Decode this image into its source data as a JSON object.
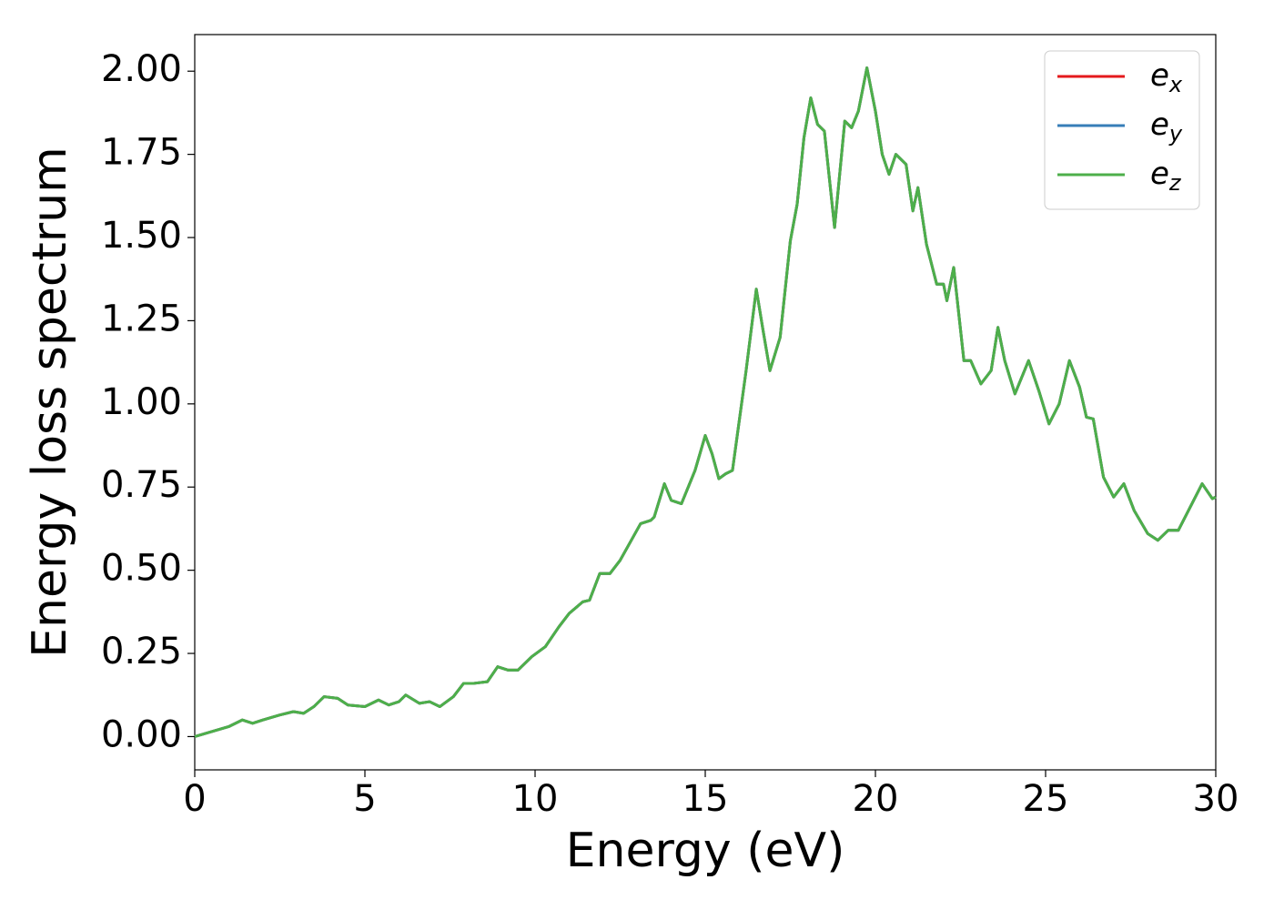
{
  "chart_data": {
    "type": "line",
    "xlabel": "Energy (eV)",
    "ylabel": "Energy loss spectrum",
    "x": [
      0,
      0.5,
      1.0,
      1.4,
      1.7,
      2.0,
      2.5,
      2.9,
      3.2,
      3.5,
      3.8,
      4.2,
      4.5,
      5.0,
      5.4,
      5.7,
      6.0,
      6.2,
      6.6,
      6.9,
      7.2,
      7.6,
      7.9,
      8.2,
      8.6,
      8.9,
      9.2,
      9.5,
      9.9,
      10.3,
      10.7,
      11.0,
      11.4,
      11.6,
      11.9,
      12.2,
      12.5,
      12.8,
      13.1,
      13.4,
      13.5,
      13.8,
      14.0,
      14.3,
      14.7,
      15.0,
      15.2,
      15.4,
      15.6,
      15.8,
      16.2,
      16.5,
      16.7,
      16.9,
      17.2,
      17.5,
      17.7,
      17.9,
      18.1,
      18.3,
      18.5,
      18.8,
      19.1,
      19.3,
      19.5,
      19.75,
      20.0,
      20.2,
      20.4,
      20.6,
      20.9,
      21.1,
      21.25,
      21.5,
      21.8,
      22.0,
      22.1,
      22.3,
      22.6,
      22.8,
      23.1,
      23.4,
      23.6,
      23.8,
      24.1,
      24.5,
      24.8,
      25.1,
      25.4,
      25.7,
      26.0,
      26.2,
      26.4,
      26.7,
      27.0,
      27.3,
      27.6,
      28.0,
      28.3,
      28.6,
      28.9,
      29.3,
      29.6,
      29.9,
      30.0
    ],
    "series": [
      {
        "name": "ex",
        "color": "#e41a1c",
        "values": [
          0,
          0.015,
          0.03,
          0.05,
          0.04,
          0.05,
          0.065,
          0.075,
          0.07,
          0.09,
          0.12,
          0.115,
          0.095,
          0.09,
          0.11,
          0.095,
          0.105,
          0.125,
          0.1,
          0.105,
          0.09,
          0.12,
          0.16,
          0.16,
          0.165,
          0.21,
          0.2,
          0.2,
          0.24,
          0.27,
          0.33,
          0.37,
          0.405,
          0.41,
          0.49,
          0.49,
          0.53,
          0.585,
          0.64,
          0.65,
          0.66,
          0.76,
          0.71,
          0.7,
          0.8,
          0.905,
          0.85,
          0.775,
          0.79,
          0.8,
          1.1,
          1.345,
          1.22,
          1.1,
          1.2,
          1.49,
          1.6,
          1.8,
          1.92,
          1.84,
          1.82,
          1.53,
          1.85,
          1.83,
          1.88,
          2.01,
          1.88,
          1.75,
          1.69,
          1.75,
          1.72,
          1.58,
          1.65,
          1.48,
          1.36,
          1.36,
          1.31,
          1.41,
          1.13,
          1.13,
          1.06,
          1.1,
          1.23,
          1.13,
          1.03,
          1.13,
          1.04,
          0.94,
          1.0,
          1.13,
          1.05,
          0.96,
          0.955,
          0.78,
          0.72,
          0.76,
          0.68,
          0.61,
          0.59,
          0.62,
          0.62,
          0.7,
          0.76,
          0.715,
          0.72
        ]
      },
      {
        "name": "ey",
        "color": "#377eb8",
        "values": [
          0,
          0.015,
          0.03,
          0.05,
          0.04,
          0.05,
          0.065,
          0.075,
          0.07,
          0.09,
          0.12,
          0.115,
          0.095,
          0.09,
          0.11,
          0.095,
          0.105,
          0.125,
          0.1,
          0.105,
          0.09,
          0.12,
          0.16,
          0.16,
          0.165,
          0.21,
          0.2,
          0.2,
          0.24,
          0.27,
          0.33,
          0.37,
          0.405,
          0.41,
          0.49,
          0.49,
          0.53,
          0.585,
          0.64,
          0.65,
          0.66,
          0.76,
          0.71,
          0.7,
          0.8,
          0.905,
          0.85,
          0.775,
          0.79,
          0.8,
          1.1,
          1.345,
          1.22,
          1.1,
          1.2,
          1.49,
          1.6,
          1.8,
          1.92,
          1.84,
          1.82,
          1.53,
          1.85,
          1.83,
          1.88,
          2.01,
          1.88,
          1.75,
          1.69,
          1.75,
          1.72,
          1.58,
          1.65,
          1.48,
          1.36,
          1.36,
          1.31,
          1.41,
          1.13,
          1.13,
          1.06,
          1.1,
          1.23,
          1.13,
          1.03,
          1.13,
          1.04,
          0.94,
          1.0,
          1.13,
          1.05,
          0.96,
          0.955,
          0.78,
          0.72,
          0.76,
          0.68,
          0.61,
          0.59,
          0.62,
          0.62,
          0.7,
          0.76,
          0.715,
          0.72
        ]
      },
      {
        "name": "ez",
        "color": "#4daf4a",
        "values": [
          0,
          0.015,
          0.03,
          0.05,
          0.04,
          0.05,
          0.065,
          0.075,
          0.07,
          0.09,
          0.12,
          0.115,
          0.095,
          0.09,
          0.11,
          0.095,
          0.105,
          0.125,
          0.1,
          0.105,
          0.09,
          0.12,
          0.16,
          0.16,
          0.165,
          0.21,
          0.2,
          0.2,
          0.24,
          0.27,
          0.33,
          0.37,
          0.405,
          0.41,
          0.49,
          0.49,
          0.53,
          0.585,
          0.64,
          0.65,
          0.66,
          0.76,
          0.71,
          0.7,
          0.8,
          0.905,
          0.85,
          0.775,
          0.79,
          0.8,
          1.1,
          1.345,
          1.22,
          1.1,
          1.2,
          1.49,
          1.6,
          1.8,
          1.92,
          1.84,
          1.82,
          1.53,
          1.85,
          1.83,
          1.88,
          2.01,
          1.88,
          1.75,
          1.69,
          1.75,
          1.72,
          1.58,
          1.65,
          1.48,
          1.36,
          1.36,
          1.31,
          1.41,
          1.13,
          1.13,
          1.06,
          1.1,
          1.23,
          1.13,
          1.03,
          1.13,
          1.04,
          0.94,
          1.0,
          1.13,
          1.05,
          0.96,
          0.955,
          0.78,
          0.72,
          0.76,
          0.68,
          0.61,
          0.59,
          0.62,
          0.62,
          0.7,
          0.76,
          0.715,
          0.72
        ]
      }
    ],
    "xlim": [
      0,
      30
    ],
    "xticks": [
      0,
      5,
      10,
      15,
      20,
      25,
      30
    ],
    "ylim": [
      -0.1,
      2.11
    ],
    "yticks": [
      {
        "value": 0,
        "label": "0.00"
      },
      {
        "value": 0.25,
        "label": "0.25"
      },
      {
        "value": 0.5,
        "label": "0.50"
      },
      {
        "value": 0.75,
        "label": "0.75"
      },
      {
        "value": 1,
        "label": "1.00"
      },
      {
        "value": 1.25,
        "label": "1.25"
      },
      {
        "value": 1.5,
        "label": "1.50"
      },
      {
        "value": 1.75,
        "label": "1.75"
      },
      {
        "value": 2,
        "label": "2.00"
      }
    ],
    "grid": false,
    "legend": "upper right"
  }
}
